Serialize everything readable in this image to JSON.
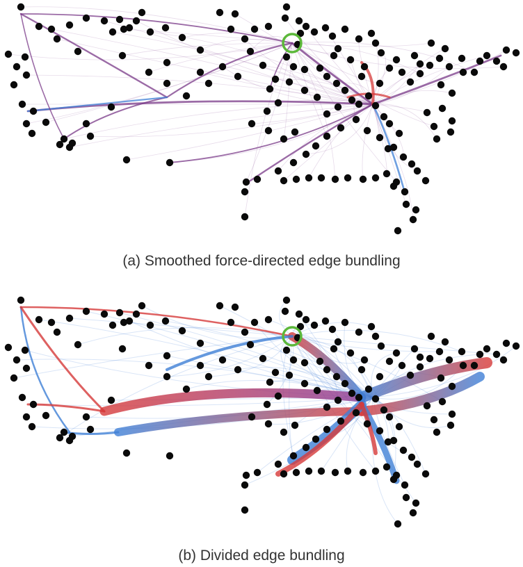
{
  "figure": {
    "panels": [
      {
        "id": "a",
        "caption": "(a) Smoothed force-directed edge bundling",
        "style": "smoothed"
      },
      {
        "id": "b",
        "caption": "(b) Divided edge bundling",
        "style": "divided"
      }
    ],
    "highlighted_node": "green-circle",
    "colors": {
      "node": "#0a0a0a",
      "highlight": "#5cb83a",
      "edge_purple": "#7a3a88",
      "edge_red": "#d63a3a",
      "edge_blue": "#3f7fd6",
      "edge_bundle_mid": "#8a3a96"
    }
  }
}
